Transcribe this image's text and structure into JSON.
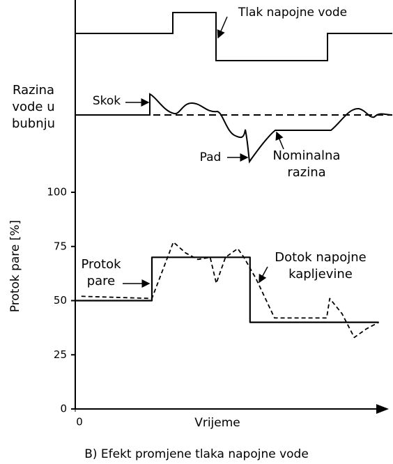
{
  "chart_data": {
    "type": "line",
    "caption": "B) Efekt promjene tlaka napojne vode",
    "y_label": "Protok pare [%]",
    "x_label": "Vrijeme",
    "xlim": [
      0,
      100
    ],
    "xticks": [
      0
    ],
    "ylim": [
      0,
      100
    ],
    "yticks": [
      0,
      25,
      50,
      75,
      100
    ],
    "series": [
      {
        "name": "Protok pare",
        "color": "#000000",
        "linestyle": "solid",
        "x": [
          0,
          25,
          25,
          57,
          57,
          99
        ],
        "values": [
          50,
          50,
          70,
          70,
          40,
          40
        ]
      },
      {
        "name": "Dotok napojne kapljevine",
        "color": "#000000",
        "linestyle": "dashed",
        "x": [
          2,
          25,
          32,
          36,
          40,
          44,
          46,
          49,
          53,
          55,
          59,
          63,
          65,
          82,
          83,
          87,
          91,
          95,
          99
        ],
        "values": [
          52,
          51,
          77,
          72,
          69,
          70,
          58,
          70,
          74,
          70,
          60,
          48,
          42,
          42,
          51,
          44,
          33,
          37,
          40
        ]
      }
    ],
    "annotations": {
      "pressure": "Tlak napojne vode",
      "level": "Razina vode u bubnju",
      "rise": "Skok",
      "fall": "Pad",
      "nominal": "Nominalna razina"
    }
  }
}
